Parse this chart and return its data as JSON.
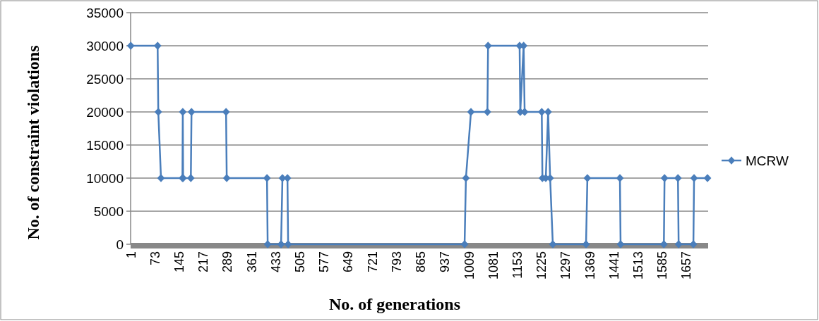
{
  "chart_data": {
    "type": "line",
    "xlabel": "No. of generations",
    "ylabel": "No. of constraint violations",
    "xlim": [
      0.5,
      1722
    ],
    "xticks": [
      1,
      73,
      145,
      217,
      289,
      361,
      433,
      505,
      577,
      649,
      721,
      793,
      865,
      937,
      1009,
      1081,
      1153,
      1225,
      1297,
      1369,
      1441,
      1513,
      1585,
      1657
    ],
    "ylim": [
      0,
      35000
    ],
    "yticks": [
      0,
      5000,
      10000,
      15000,
      20000,
      25000,
      30000,
      35000
    ],
    "grid": "y",
    "legend": "right",
    "marker": "diamond",
    "line_style": "solid",
    "series": [
      {
        "name": "MCRW",
        "color": "#4a7ebb",
        "x": [
          1,
          81,
          83,
          91,
          155,
          156,
          157,
          180,
          182,
          285,
          287,
          407,
          409,
          449,
          453,
          468,
          470,
          996,
          1000,
          1015,
          1064,
          1066,
          1160,
          1162,
          1172,
          1175,
          1226,
          1228,
          1238,
          1245,
          1251,
          1259,
          1358,
          1362,
          1459,
          1461,
          1590,
          1592,
          1632,
          1634,
          1678,
          1680,
          1720
        ],
        "values": [
          30000,
          30000,
          20000,
          10000,
          10000,
          20000,
          10000,
          10000,
          20000,
          20000,
          10000,
          10000,
          0,
          0,
          10000,
          10000,
          0,
          0,
          10000,
          20000,
          20000,
          30000,
          30000,
          20000,
          30000,
          20000,
          20000,
          10000,
          10000,
          20000,
          10000,
          0,
          0,
          10000,
          10000,
          0,
          0,
          10000,
          10000,
          0,
          0,
          10000,
          10000
        ]
      }
    ]
  }
}
